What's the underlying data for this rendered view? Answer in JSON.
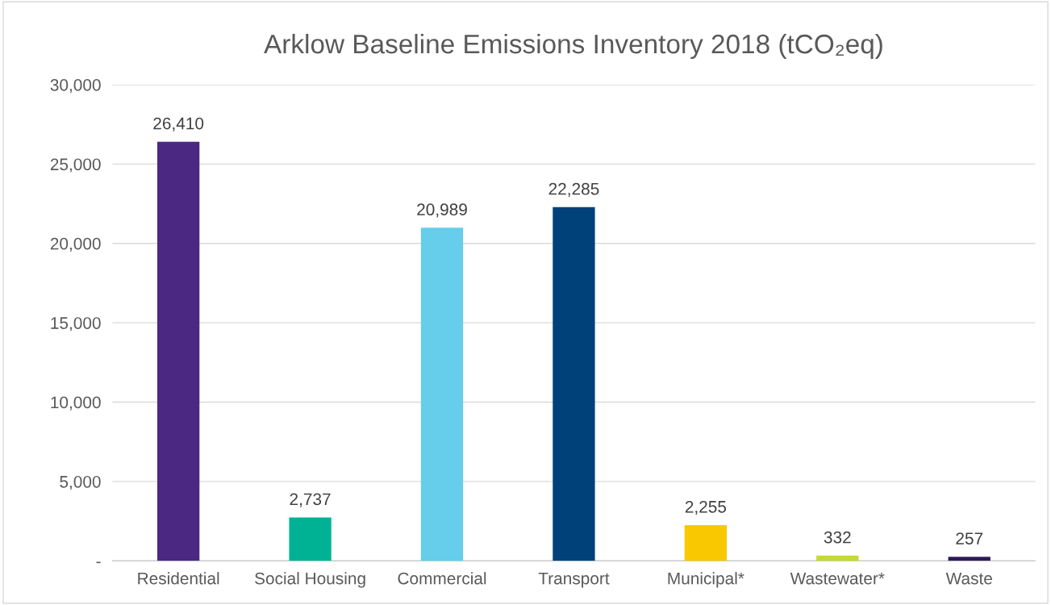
{
  "chart_data": {
    "type": "bar",
    "title": "Arklow Baseline Emissions Inventory 2018 (tCO₂eq)",
    "categories": [
      "Residential",
      "Social Housing",
      "Commercial",
      "Transport",
      "Municipal*",
      "Wastewater*",
      "Waste"
    ],
    "values": [
      26410,
      2737,
      20989,
      22285,
      2255,
      332,
      257
    ],
    "colors": [
      "#4b2882",
      "#00b294",
      "#66cdea",
      "#004179",
      "#f9c800",
      "#c5da2f",
      "#2e1a5a"
    ],
    "value_labels": [
      "26,410",
      "2,737",
      "20,989",
      "22,285",
      "2,255",
      "332",
      "257"
    ],
    "ylim": [
      0,
      30000
    ],
    "yticks": [
      {
        "value": 0,
        "label": "-"
      },
      {
        "value": 5000,
        "label": "5,000"
      },
      {
        "value": 10000,
        "label": "10,000"
      },
      {
        "value": 15000,
        "label": "15,000"
      },
      {
        "value": 20000,
        "label": "20,000"
      },
      {
        "value": 25000,
        "label": "25,000"
      },
      {
        "value": 30000,
        "label": "30,000"
      }
    ],
    "grid": "y"
  }
}
